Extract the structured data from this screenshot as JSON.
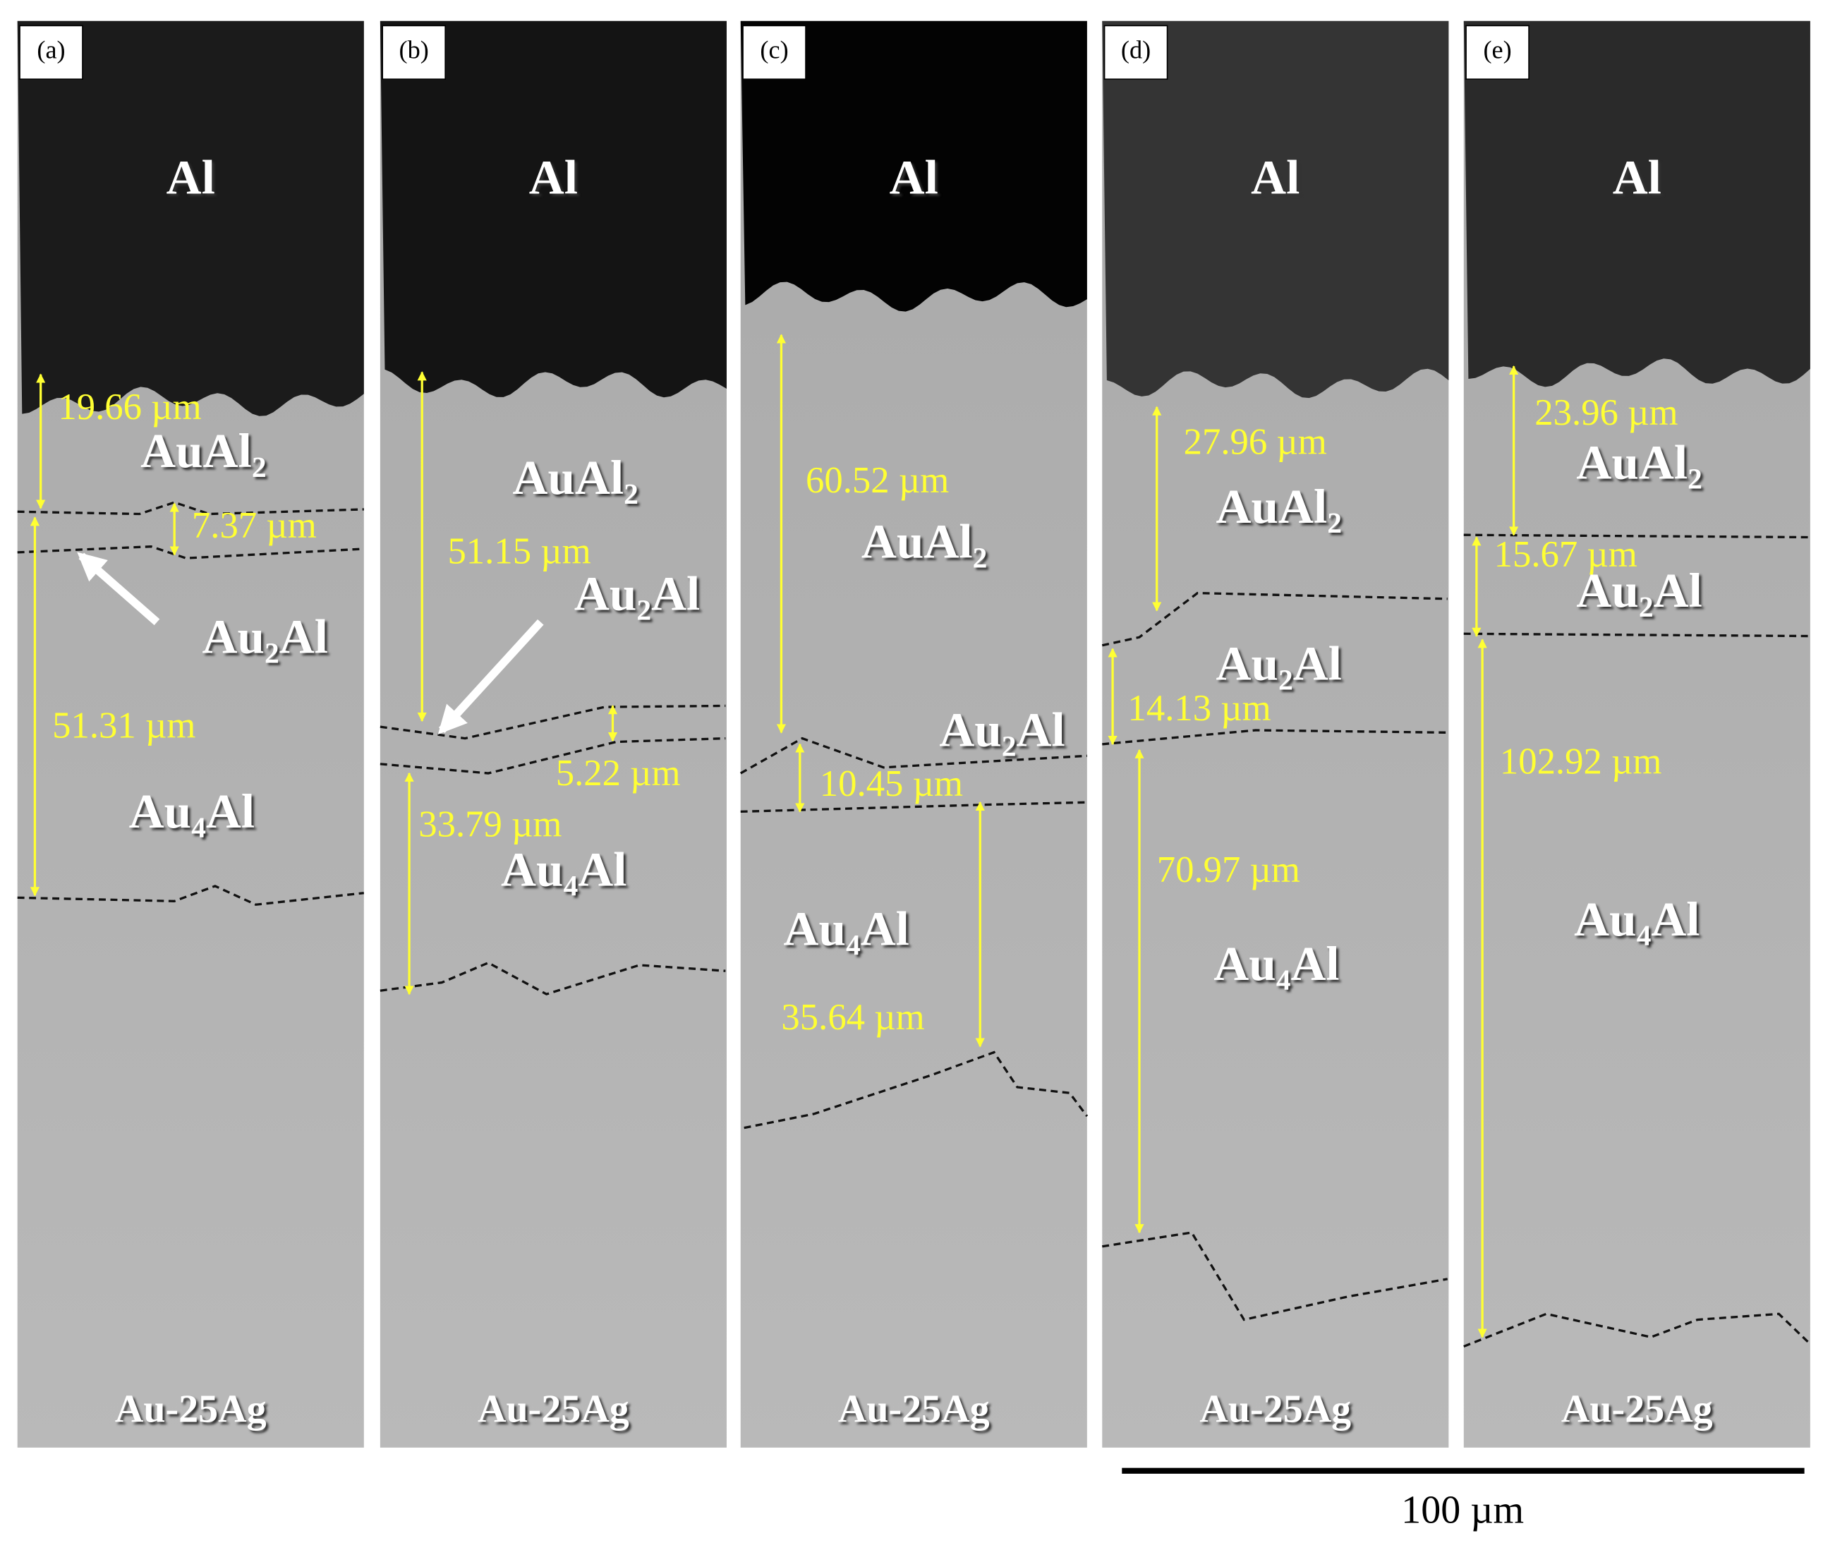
{
  "panels": [
    {
      "label": "(a)",
      "top": "Al",
      "phases": [
        "AuAl₂",
        "Au₂Al",
        "Au₄Al"
      ],
      "bottom": "Au-25Ag",
      "thicknesses": [
        "19.66 µm",
        "7.37 µm",
        "51.31 µm"
      ]
    },
    {
      "label": "(b)",
      "top": "Al",
      "phases": [
        "AuAl₂",
        "Au₂Al",
        "Au₄Al"
      ],
      "bottom": "Au-25Ag",
      "thicknesses": [
        "51.15 µm",
        "5.22 µm",
        "33.79 µm"
      ]
    },
    {
      "label": "(c)",
      "top": "Al",
      "phases": [
        "AuAl₂",
        "Au₂Al",
        "Au₄Al"
      ],
      "bottom": "Au-25Ag",
      "thicknesses": [
        "60.52 µm",
        "10.45 µm",
        "35.64 µm"
      ]
    },
    {
      "label": "(d)",
      "top": "Al",
      "phases": [
        "AuAl₂",
        "Au₂Al",
        "Au₄Al"
      ],
      "bottom": "Au-25Ag",
      "thicknesses": [
        "27.96 µm",
        "14.13 µm",
        "70.97 µm"
      ]
    },
    {
      "label": "(e)",
      "top": "Al",
      "phases": [
        "AuAl₂",
        "Au₂Al",
        "Au₄Al"
      ],
      "bottom": "Au-25Ag",
      "thicknesses": [
        "23.96 µm",
        "15.67 µm",
        "102.92 µm"
      ]
    }
  ],
  "scale_bar": "100 µm"
}
